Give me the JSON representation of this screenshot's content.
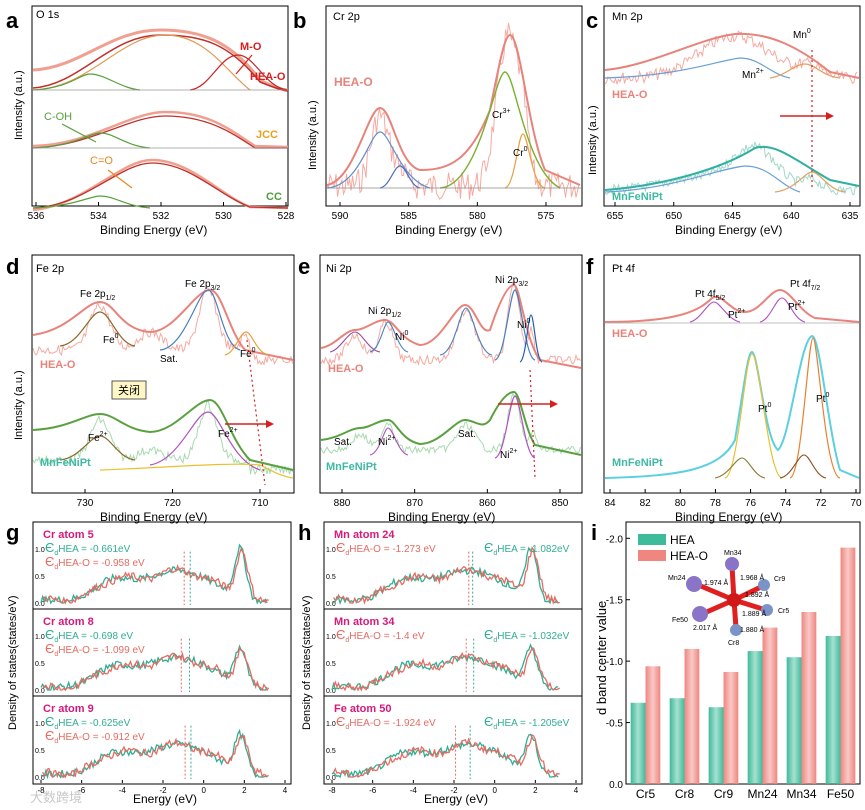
{
  "panels": {
    "a": {
      "letter": "a",
      "title": "O 1s",
      "xlabel": "Binding Energy (eV)",
      "ylabel": "Intensity (a.u.)",
      "xticks": [
        "536",
        "534",
        "532",
        "530",
        "528"
      ],
      "labels": {
        "mo": "M-O",
        "hea": "HEA-O",
        "coh": "C-OH",
        "jcc": "JCC",
        "co": "C=O",
        "cc": "CC"
      }
    },
    "b": {
      "letter": "b",
      "title": "Cr 2p",
      "xlabel": "Binding Energy (eV)",
      "ylabel": "Intensity (a.u.)",
      "xticks": [
        "590",
        "585",
        "580",
        "575"
      ],
      "labels": {
        "hea": "HEA-O",
        "cr3": "Cr",
        "cr3sup": "3+",
        "cr0": "Cr",
        "cr0sup": "0"
      }
    },
    "c": {
      "letter": "c",
      "title": "Mn 2p",
      "xlabel": "Binding Energy (eV)",
      "ylabel": "Intensity (a.u.)",
      "xticks": [
        "655",
        "650",
        "645",
        "640",
        "635"
      ],
      "labels": {
        "mn0": "Mn",
        "mn0sup": "0",
        "mn2": "Mn",
        "mn2sup": "2+",
        "hea": "HEA-O",
        "mfn": "MnFeNiPt"
      }
    },
    "d": {
      "letter": "d",
      "title": "Fe 2p",
      "xlabel": "Binding Energy (eV)",
      "ylabel": "Intensity (a.u.)",
      "xticks": [
        "730",
        "720",
        "710"
      ],
      "labels": {
        "fe12": "Fe 2p",
        "fe12sub": "1/2",
        "fe32": "Fe 2p",
        "fe32sub": "3/2",
        "fe0a": "Fe",
        "fe0asup": "0",
        "sat": "Sat.",
        "fe0b": "Fe",
        "fe0bsup": "0",
        "hea": "HEA-O",
        "close": "关闭",
        "fe2a": "Fe",
        "fe2asup": "2+",
        "fe2b": "Fe",
        "fe2bsup": "2+",
        "mfn": "MnFeNiPt"
      }
    },
    "e": {
      "letter": "e",
      "title": "Ni 2p",
      "xlabel": "Binding Energy (eV)",
      "ylabel": "",
      "xticks": [
        "880",
        "870",
        "860",
        "850"
      ],
      "labels": {
        "ni12": "Ni 2p",
        "ni12sub": "1/2",
        "ni32": "Ni 2p",
        "ni32sub": "3/2",
        "ni0a": "Ni",
        "ni0asup": "0",
        "ni0b": "Ni",
        "ni0bsup": "0",
        "hea": "HEA-O",
        "sat1": "Sat.",
        "ni2a": "Ni",
        "ni2asup": "2+",
        "sat2": "Sat.",
        "ni2b": "Ni",
        "ni2bsup": "2+",
        "mfn": "MnFeNiPt"
      }
    },
    "f": {
      "letter": "f",
      "title": "Pt 4f",
      "xlabel": "Binding Energy (eV)",
      "ylabel": "",
      "xticks": [
        "84",
        "82",
        "80",
        "78",
        "76",
        "74",
        "72",
        "70"
      ],
      "labels": {
        "pt52": "Pt 4f",
        "pt52sub": "5/2",
        "pt72": "Pt 4f",
        "pt72sub": "7/2",
        "pt2a": "Pt",
        "pt2asup": "2+",
        "pt2b": "Pt",
        "pt2bsup": "2+",
        "hea": "HEA-O",
        "pt0a": "Pt",
        "pt0asup": "0",
        "pt0b": "Pt",
        "pt0bsup": "0",
        "mfn": "MnFeNiPt"
      }
    },
    "g": {
      "letter": "g",
      "xlabel": "Energy (eV)",
      "ylabel": "Density of states(states/eV)",
      "xticks": [
        "-8",
        "-6",
        "-4",
        "-2",
        "0",
        "2",
        "4"
      ],
      "yticks": [
        "0.0",
        "0.5",
        "1.0"
      ],
      "subs": [
        {
          "title": "Cr atom 5",
          "eh": "HEA = -0.661eV",
          "eo": "HEA-O = -0.958 eV"
        },
        {
          "title": "Cr atom 8",
          "eh": "HEA = -0.698 eV",
          "eo": "HEA-O = -1.099 eV"
        },
        {
          "title": "Cr atom 9",
          "eh": "HEA = -0.625eV",
          "eo": "HEA-O = -0.912 eV"
        }
      ]
    },
    "h": {
      "letter": "h",
      "xlabel": "Energy (eV)",
      "ylabel": "Density of states(states/eV)",
      "xticks": [
        "-8",
        "-6",
        "-4",
        "-2",
        "0",
        "2",
        "4"
      ],
      "yticks": [
        "0.0",
        "0.5",
        "1.0"
      ],
      "subs": [
        {
          "title": "Mn atom 24",
          "eo": "HEA-O = -1.273 eV",
          "eh": "HEA = -1.082eV"
        },
        {
          "title": "Mn atom 34",
          "eo": "HEA-O = -1.4 eV",
          "eh": "HEA = -1.032eV"
        },
        {
          "title": "Fe atom 50",
          "eo": "HEA-O = -1.924 eV",
          "eh": "HEA = -1.205eV"
        }
      ]
    },
    "i": {
      "letter": "i",
      "ylabel": "d band center value",
      "yticks": [
        "-2.0",
        "-1.5",
        "-1.0",
        "-0.5",
        "0.0"
      ],
      "legend": [
        "HEA",
        "HEA-O"
      ],
      "mol": {
        "top": "Mn34",
        "cr9": "Cr9",
        "cr5": "Cr5",
        "mn24": "Mn24",
        "fe50": "Fe50",
        "cr8": "Cr8",
        "d1": "1.968 Å",
        "d2": "1.974 Å",
        "d3": "1.892 Å",
        "d4": "1.889 Å",
        "d5": "2.017 Å",
        "d6": "1.880 Å"
      }
    }
  },
  "epsilon_d": "Є",
  "sub_d": "d",
  "watermark": "大数跨境",
  "chart_data": [
    {
      "panel": "i",
      "type": "bar",
      "categories": [
        "Cr5",
        "Cr8",
        "Cr9",
        "Mn24",
        "Mn34",
        "Fe50"
      ],
      "series": [
        {
          "name": "HEA",
          "values": [
            -0.661,
            -0.698,
            -0.625,
            -1.082,
            -1.032,
            -1.205
          ],
          "color": "#3dbb9a"
        },
        {
          "name": "HEA-O",
          "values": [
            -0.958,
            -1.099,
            -0.912,
            -1.273,
            -1.4,
            -1.924
          ],
          "color": "#f08680"
        }
      ],
      "ylim": [
        0,
        -2.1
      ],
      "ylabel": "d band center value"
    },
    {
      "panel": "g",
      "type": "line",
      "xlim": [
        -8,
        4
      ],
      "ylim": [
        0,
        1.35
      ],
      "fermi_markers": [
        [
          -0.661,
          -0.958
        ],
        [
          -0.698,
          -1.099
        ],
        [
          -0.625,
          -0.912
        ]
      ]
    },
    {
      "panel": "h",
      "type": "line",
      "xlim": [
        -8,
        4
      ],
      "ylim": [
        0,
        1.35
      ],
      "fermi_markers": [
        [
          -1.082,
          -1.273
        ],
        [
          -1.032,
          -1.4
        ],
        [
          -1.205,
          -1.924
        ]
      ]
    }
  ]
}
